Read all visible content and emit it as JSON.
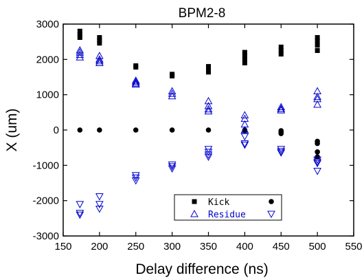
{
  "chart_data": {
    "type": "scatter",
    "title": "BPM2-8",
    "xlabel": "Delay difference (ns)",
    "ylabel": "X (um)",
    "xlim": [
      150,
      550
    ],
    "ylim": [
      -3000,
      3000
    ],
    "xticks": [
      150,
      200,
      250,
      300,
      350,
      400,
      450,
      500,
      550
    ],
    "yticks": [
      -3000,
      -2000,
      -1000,
      0,
      1000,
      2000,
      3000
    ],
    "grid": false,
    "legend_position": "bottom-center",
    "legend": [
      {
        "label": "Kick",
        "series": [
          "kick_1",
          "kick_2"
        ]
      },
      {
        "label": "Residue",
        "series": [
          "residue_1",
          "residue_2"
        ]
      }
    ],
    "series": [
      {
        "id": "kick_1",
        "marker": "square",
        "color": "#000000",
        "points": [
          [
            173,
            2800
          ],
          [
            173,
            2700
          ],
          [
            173,
            2620
          ],
          [
            200,
            2620
          ],
          [
            200,
            2540
          ],
          [
            200,
            2460
          ],
          [
            250,
            1820
          ],
          [
            250,
            1780
          ],
          [
            300,
            1580
          ],
          [
            300,
            1530
          ],
          [
            350,
            1800
          ],
          [
            350,
            1720
          ],
          [
            350,
            1640
          ],
          [
            400,
            2200
          ],
          [
            400,
            2100
          ],
          [
            400,
            2000
          ],
          [
            400,
            1900
          ],
          [
            450,
            2350
          ],
          [
            450,
            2250
          ],
          [
            450,
            2150
          ],
          [
            500,
            2620
          ],
          [
            500,
            2520
          ],
          [
            500,
            2400
          ],
          [
            500,
            2250
          ]
        ]
      },
      {
        "id": "kick_2",
        "marker": "circle",
        "color": "#000000",
        "points": [
          [
            173,
            0
          ],
          [
            200,
            0
          ],
          [
            250,
            0
          ],
          [
            300,
            0
          ],
          [
            350,
            0
          ],
          [
            400,
            0
          ],
          [
            400,
            -20
          ],
          [
            450,
            -20
          ],
          [
            450,
            -60
          ],
          [
            450,
            -100
          ],
          [
            500,
            -320
          ],
          [
            500,
            -380
          ],
          [
            500,
            -620
          ],
          [
            500,
            -760
          ]
        ]
      },
      {
        "id": "residue_1",
        "marker": "triangle-up",
        "color": "#0000cc",
        "points": [
          [
            173,
            2260
          ],
          [
            173,
            2200
          ],
          [
            173,
            2130
          ],
          [
            173,
            2060
          ],
          [
            200,
            2100
          ],
          [
            200,
            2000
          ],
          [
            200,
            1950
          ],
          [
            200,
            1900
          ],
          [
            250,
            1400
          ],
          [
            250,
            1360
          ],
          [
            250,
            1320
          ],
          [
            250,
            1290
          ],
          [
            300,
            1100
          ],
          [
            300,
            1030
          ],
          [
            300,
            960
          ],
          [
            350,
            820
          ],
          [
            350,
            680
          ],
          [
            350,
            590
          ],
          [
            350,
            530
          ],
          [
            400,
            420
          ],
          [
            400,
            320
          ],
          [
            400,
            160
          ],
          [
            400,
            0
          ],
          [
            450,
            650
          ],
          [
            450,
            600
          ],
          [
            450,
            560
          ],
          [
            500,
            1100
          ],
          [
            500,
            940
          ],
          [
            500,
            880
          ],
          [
            500,
            720
          ]
        ]
      },
      {
        "id": "residue_2",
        "marker": "triangle-down",
        "color": "#0000cc",
        "points": [
          [
            173,
            -2100
          ],
          [
            173,
            -2350
          ],
          [
            173,
            -2400
          ],
          [
            200,
            -1880
          ],
          [
            200,
            -2100
          ],
          [
            200,
            -2230
          ],
          [
            250,
            -1280
          ],
          [
            250,
            -1350
          ],
          [
            250,
            -1430
          ],
          [
            300,
            -980
          ],
          [
            300,
            -1030
          ],
          [
            300,
            -1090
          ],
          [
            350,
            -540
          ],
          [
            350,
            -620
          ],
          [
            350,
            -700
          ],
          [
            350,
            -760
          ],
          [
            400,
            -180
          ],
          [
            400,
            -380
          ],
          [
            400,
            -420
          ],
          [
            450,
            -540
          ],
          [
            450,
            -600
          ],
          [
            450,
            -640
          ],
          [
            500,
            -840
          ],
          [
            500,
            -900
          ],
          [
            500,
            -940
          ],
          [
            500,
            -1160
          ]
        ]
      }
    ]
  }
}
